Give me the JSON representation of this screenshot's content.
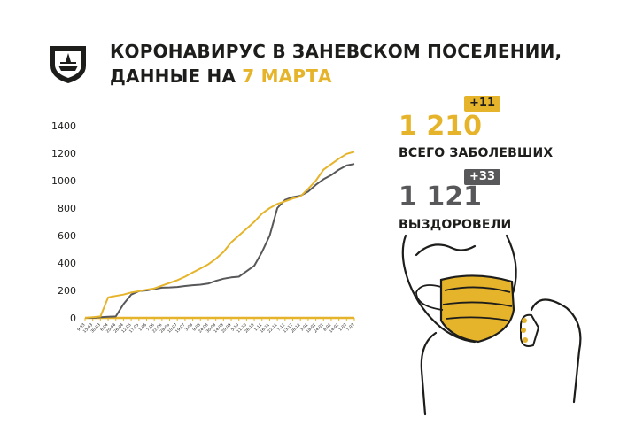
{
  "header": {
    "title_line1": "КОРОНАВИРУС В ЗАНЕВСКОМ ПОСЕЛЕНИИ,",
    "title_line2_prefix": "ДАННЫЕ НА ",
    "title_line2_accent": "7 МАРТА"
  },
  "stats": {
    "cases": {
      "value": "1 210",
      "delta": "+11",
      "label": "ВСЕГО ЗАБОЛЕВШИХ"
    },
    "recovered": {
      "value": "1 121",
      "delta": "+33",
      "label": "ВЫЗДОРОВЕЛИ"
    }
  },
  "colors": {
    "cases": "#e6b42b",
    "recovered": "#58585a",
    "text": "#1d1d1b"
  },
  "chart_data": {
    "type": "line",
    "x": [
      "9.03",
      "15.03",
      "30.03",
      "6.04",
      "20.04",
      "26.04",
      "12.05",
      "17.05",
      "1.06",
      "7.06",
      "22.06",
      "28.06",
      "10.07",
      "19.07",
      "3.08",
      "9.08",
      "24.08",
      "30.08",
      "14.09",
      "20.09",
      "5.10",
      "11.10",
      "26.10",
      "1.11",
      "16.11",
      "22.11",
      "7.12",
      "13.12",
      "28.12",
      "3.01",
      "18.01",
      "24.01",
      "8.02",
      "14.02",
      "1.03",
      "7.03"
    ],
    "x_tick_labels": [
      "9.03",
      "15.03",
      "30.03",
      "6.04",
      "20.04",
      "26.04",
      "12.05",
      "17.05",
      "1.06",
      "7.06",
      "22.06",
      "28.06",
      "10.07",
      "19.07",
      "3.08",
      "9.08",
      "24.08",
      "30.08",
      "14.09",
      "20.09",
      "5.10",
      "11.10",
      "26.10",
      "1.11",
      "16.11",
      "22.11",
      "7.12",
      "13.12",
      "28.12",
      "3.01",
      "18.01",
      "24.01",
      "8.02",
      "14.02",
      "1.03",
      "7.03"
    ],
    "series": [
      {
        "name": "",
        "role": "cases",
        "color": "#e6b42b",
        "values": [
          0,
          5,
          10,
          150,
          160,
          170,
          185,
          195,
          205,
          215,
          235,
          255,
          275,
          300,
          330,
          360,
          390,
          430,
          480,
          550,
          600,
          650,
          700,
          760,
          800,
          830,
          850,
          870,
          885,
          940,
          1000,
          1080,
          1120,
          1160,
          1195,
          1210
        ]
      },
      {
        "name": "",
        "role": "recovered",
        "color": "#58585a",
        "values": [
          0,
          0,
          5,
          8,
          10,
          100,
          170,
          195,
          200,
          210,
          220,
          222,
          225,
          232,
          238,
          242,
          250,
          270,
          285,
          295,
          300,
          340,
          380,
          480,
          600,
          800,
          860,
          880,
          890,
          920,
          970,
          1010,
          1040,
          1080,
          1110,
          1121
        ]
      }
    ],
    "yticks": [
      0,
      200,
      400,
      600,
      800,
      1000,
      1200,
      1400
    ],
    "ylim": [
      0,
      1400
    ],
    "title": "",
    "xlabel": "",
    "ylabel": "",
    "grid": false,
    "legend": "none"
  }
}
